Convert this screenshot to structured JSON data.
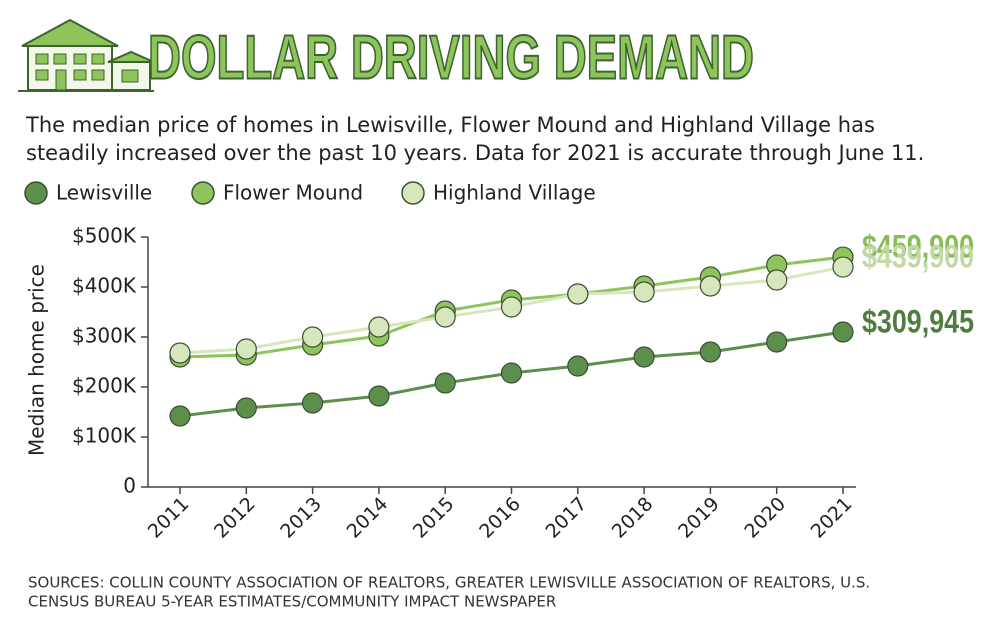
{
  "chart_data": {
    "type": "line",
    "title": "DOLLAR DRIVING DEMAND",
    "subtitle": [
      "The median price of homes in Lewisville, Flower Mound and Highland Village has",
      "steadily increased over the past 10 years. Data for 2021 is accurate through June 11."
    ],
    "y_label": "Median home price",
    "categories": [
      "2011",
      "2012",
      "2013",
      "2014",
      "2015",
      "2016",
      "2017",
      "2018",
      "2019",
      "2020",
      "2021"
    ],
    "series": [
      {
        "name": "Lewisville",
        "color": "#5d8f4c",
        "label_color": "#4f7d3f",
        "values": [
          142000,
          158000,
          168000,
          182000,
          208000,
          228000,
          242000,
          260000,
          270000,
          290000,
          309945
        ],
        "value_labels": [
          null,
          null,
          null,
          null,
          null,
          null,
          null,
          null,
          null,
          null,
          "$309,945"
        ]
      },
      {
        "name": "Flower Mound",
        "color": "#8dc55c",
        "label_color": "#86bd55",
        "values": [
          260000,
          264000,
          284000,
          302000,
          352000,
          374000,
          386000,
          402000,
          420000,
          444000,
          459900
        ],
        "value_labels": [
          null,
          null,
          null,
          null,
          null,
          null,
          null,
          null,
          null,
          null,
          "$459,900"
        ]
      },
      {
        "name": "Highland Village",
        "color": "#d5e7bb",
        "label_color": "#c2d9a6",
        "values": [
          268000,
          276000,
          300000,
          320000,
          340000,
          360000,
          386000,
          390000,
          402000,
          414000,
          439900
        ],
        "value_labels": [
          null,
          null,
          null,
          null,
          null,
          null,
          null,
          null,
          null,
          null,
          "$439,900"
        ]
      }
    ],
    "ylim": [
      0,
      500000
    ],
    "yticks": [
      0,
      {
        "value": 100000,
        "label": "$100K"
      },
      {
        "value": 200000,
        "label": "$200K"
      },
      {
        "value": 300000,
        "label": "$300K"
      },
      {
        "value": 400000,
        "label": "$400K"
      },
      {
        "value": 500000,
        "label": "$500K"
      }
    ],
    "legend": "top-left",
    "source": [
      "SOURCES: COLLIN COUNTY ASSOCIATION OF REALTORS, GREATER LEWISVILLE ASSOCIATION OF REALTORS, U.S.",
      "CENSUS BUREAU 5-YEAR ESTIMATES/COMMUNITY IMPACT NEWSPAPER"
    ]
  }
}
